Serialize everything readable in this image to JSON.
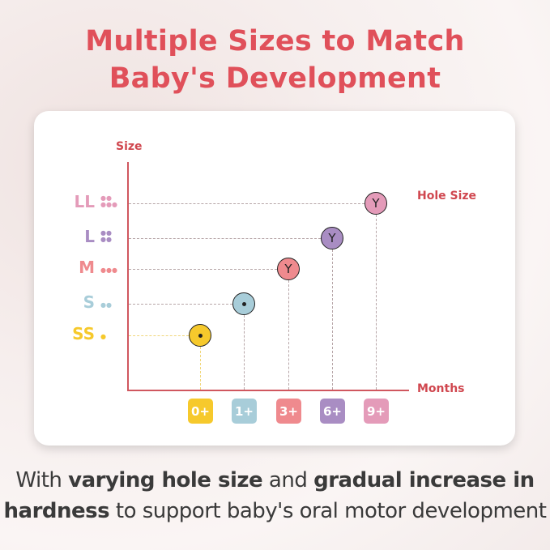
{
  "title": {
    "line1": "Multiple Sizes to Match",
    "line2": "Baby's Development"
  },
  "chart": {
    "y_axis_label": "Size",
    "x_axis_label": "Months",
    "legend_label": "Hole Size",
    "axis_color": "#d0575f",
    "sizes": [
      {
        "label": "LL",
        "drops": 5,
        "color": "#e49bb9",
        "months": "9+",
        "hole": "Y"
      },
      {
        "label": "L",
        "drops": 4,
        "color": "#a98dc3",
        "months": "6+",
        "hole": "Y"
      },
      {
        "label": "M",
        "drops": 3,
        "color": "#ef8a8e",
        "months": "3+",
        "hole": "Y"
      },
      {
        "label": "S",
        "drops": 2,
        "color": "#a8cdd9",
        "months": "1+",
        "hole": "dot"
      },
      {
        "label": "SS",
        "drops": 1,
        "color": "#f6c92c",
        "months": "0+",
        "hole": "dot"
      }
    ]
  },
  "caption": {
    "p1": "With ",
    "b1": "varying hole size",
    "p2": " and ",
    "b2": "gradual increase in",
    "b3": "hardness",
    "p3": " to support baby's oral motor development"
  }
}
